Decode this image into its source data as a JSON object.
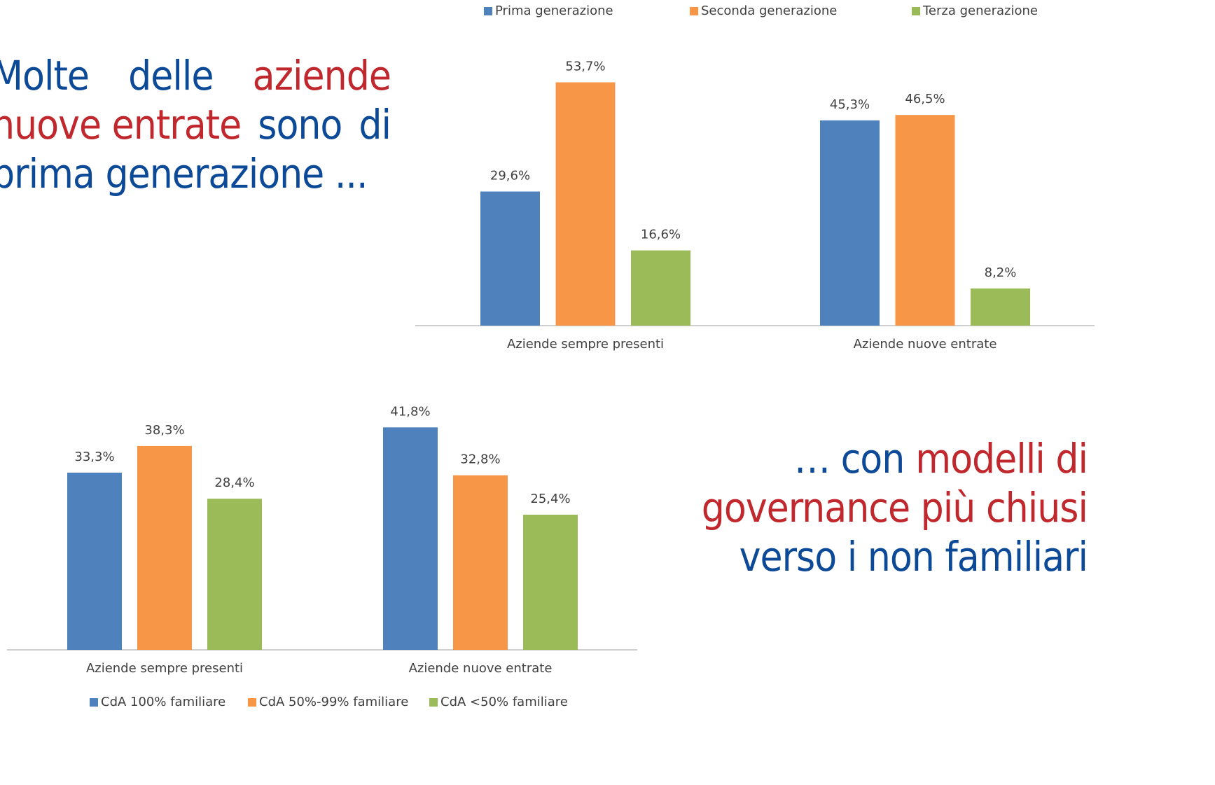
{
  "texts": {
    "left": [
      [
        {
          "text": "Molte",
          "color": "#0c4a98"
        },
        {
          "text": "delle",
          "color": "#0c4a98"
        },
        {
          "text": "aziende",
          "color": "#c0282d"
        }
      ],
      [
        {
          "text": "nuove entrate",
          "color": "#c0282d"
        },
        {
          "text": "sono",
          "color": "#0c4a98"
        },
        {
          "text": "di",
          "color": "#0c4a98"
        }
      ],
      [
        {
          "text": "prima generazione ...",
          "color": "#0c4a98"
        }
      ]
    ],
    "right": [
      [
        {
          "text": "… con",
          "color": "#0c4a98"
        },
        {
          "text": "modelli di",
          "color": "#c0282d"
        }
      ],
      [
        {
          "text": "governance più chiusi",
          "color": "#c0282d"
        }
      ],
      [
        {
          "text": "verso i non familiari",
          "color": "#0c4a98"
        }
      ]
    ]
  },
  "chart_data": [
    {
      "type": "bar",
      "categories": [
        "Aziende sempre presenti",
        "Aziende nuove entrate"
      ],
      "series": [
        {
          "name": "Prima generazione",
          "color": "#4f81bd",
          "values": [
            29.6,
            45.3
          ],
          "value_labels": [
            "29,6%",
            "45,3%"
          ]
        },
        {
          "name": "Seconda generazione",
          "color": "#f79646",
          "values": [
            53.7,
            46.5
          ],
          "value_labels": [
            "53,7%",
            "46,5%"
          ]
        },
        {
          "name": "Terza generazione",
          "color": "#9bbb59",
          "values": [
            16.6,
            8.2
          ],
          "value_labels": [
            "16,6%",
            "8,2%"
          ]
        }
      ],
      "legend": "top"
    },
    {
      "type": "bar",
      "categories": [
        "Aziende sempre presenti",
        "Aziende nuove entrate"
      ],
      "series": [
        {
          "name": "CdA 100% familiare",
          "color": "#4f81bd",
          "values": [
            33.3,
            41.8
          ],
          "value_labels": [
            "33,3%",
            "41,8%"
          ]
        },
        {
          "name": "CdA 50%-99% familiare",
          "color": "#f79646",
          "values": [
            38.3,
            32.8
          ],
          "value_labels": [
            "38,3%",
            "32,8%"
          ]
        },
        {
          "name": "CdA <50% familiare",
          "color": "#9bbb59",
          "values": [
            28.4,
            25.4
          ],
          "value_labels": [
            "28,4%",
            "25,4%"
          ]
        }
      ],
      "legend": "bottom"
    }
  ]
}
